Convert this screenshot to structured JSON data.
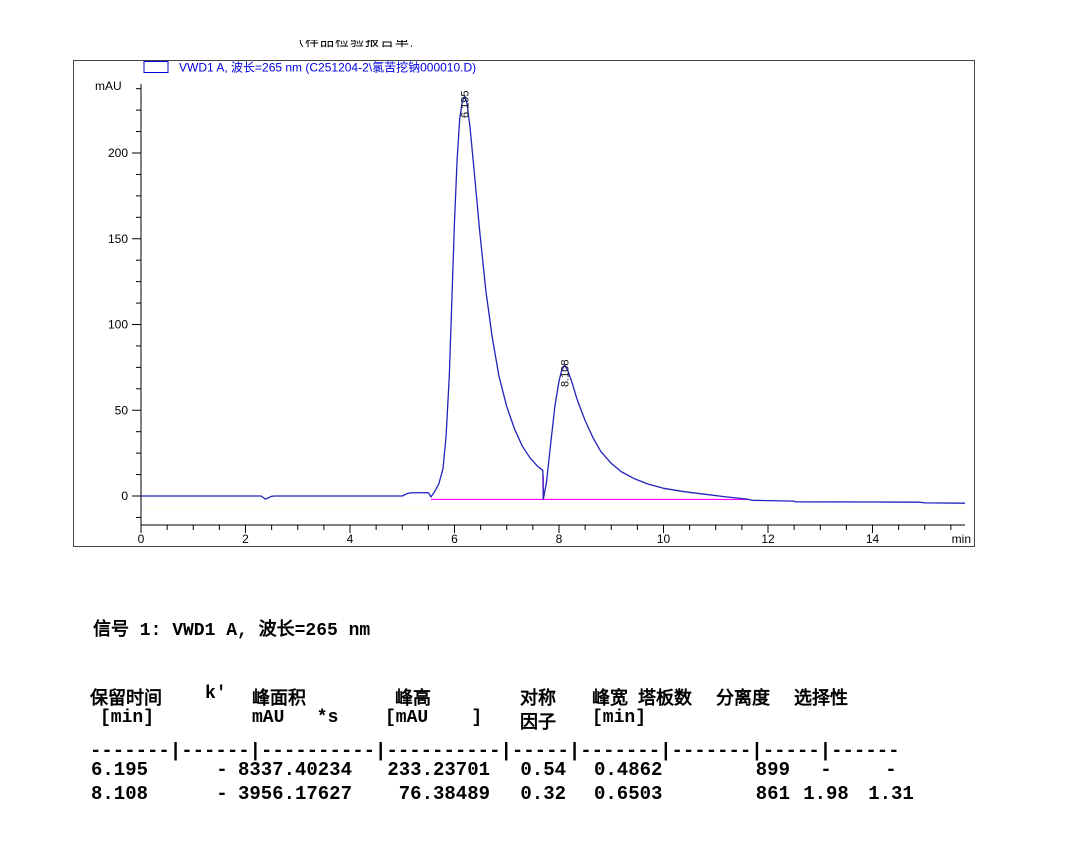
{
  "header": {
    "clipped_title_fragments": "（样品检验报告单）"
  },
  "chart_data": {
    "type": "line",
    "title": "",
    "legend": "VWD1 A, 波长=265 nm (C251204-2\\氯苦挖钠000010.D)",
    "legend_position": "top-left",
    "ylabel": "mAU",
    "xlabel": "min",
    "xlim": [
      0,
      15.8
    ],
    "ylim": [
      -17,
      240
    ],
    "x_major_ticks": [
      0,
      2,
      4,
      6,
      8,
      10,
      12,
      14
    ],
    "x_minor_step": 0.5,
    "y_major_ticks": [
      0,
      50,
      100,
      150,
      200
    ],
    "y_minor_step": 12.5,
    "grid": false,
    "colors": {
      "trace": "#2222bb",
      "baseline": "#ff00ff",
      "legend": "#0000dd",
      "faint_line": "#ffffc8"
    },
    "baseline": {
      "x_start": 5.55,
      "x_end": 11.6,
      "y": -2,
      "valley_tick_x": 7.7
    },
    "peaks": [
      {
        "label": "6.195",
        "time": 6.195,
        "height_mau": 233.23701,
        "area": 8337.40234
      },
      {
        "label": "8.108",
        "time": 8.108,
        "height_mau": 76.38489,
        "area": 3956.17627
      }
    ],
    "trace_points": [
      [
        0,
        0
      ],
      [
        2.3,
        0
      ],
      [
        2.38,
        -1.8
      ],
      [
        2.5,
        -0.2
      ],
      [
        2.55,
        0
      ],
      [
        5.0,
        0
      ],
      [
        5.08,
        1.2
      ],
      [
        5.15,
        1.8
      ],
      [
        5.5,
        2
      ],
      [
        5.55,
        -0.5
      ],
      [
        5.62,
        2.5
      ],
      [
        5.7,
        7
      ],
      [
        5.78,
        16
      ],
      [
        5.84,
        35
      ],
      [
        5.9,
        70
      ],
      [
        5.95,
        115
      ],
      [
        6.0,
        160
      ],
      [
        6.05,
        196
      ],
      [
        6.1,
        220
      ],
      [
        6.15,
        230
      ],
      [
        6.195,
        233.2
      ],
      [
        6.24,
        229
      ],
      [
        6.3,
        214
      ],
      [
        6.38,
        188
      ],
      [
        6.48,
        155
      ],
      [
        6.6,
        120
      ],
      [
        6.72,
        93
      ],
      [
        6.85,
        70
      ],
      [
        7.0,
        52
      ],
      [
        7.15,
        39
      ],
      [
        7.3,
        29
      ],
      [
        7.45,
        22
      ],
      [
        7.6,
        17
      ],
      [
        7.69,
        15
      ],
      [
        7.7,
        -2
      ],
      [
        7.76,
        8
      ],
      [
        7.84,
        30
      ],
      [
        7.92,
        52
      ],
      [
        8.0,
        67
      ],
      [
        8.05,
        73
      ],
      [
        8.108,
        76.4
      ],
      [
        8.17,
        73
      ],
      [
        8.25,
        66
      ],
      [
        8.35,
        56
      ],
      [
        8.5,
        44
      ],
      [
        8.65,
        34
      ],
      [
        8.8,
        26
      ],
      [
        9.0,
        19
      ],
      [
        9.2,
        14
      ],
      [
        9.45,
        10
      ],
      [
        9.7,
        7
      ],
      [
        10.0,
        4.5
      ],
      [
        10.4,
        2.5
      ],
      [
        10.8,
        1
      ],
      [
        11.2,
        -0.5
      ],
      [
        11.6,
        -1.8
      ],
      [
        11.7,
        -2.5
      ],
      [
        12.5,
        -3
      ],
      [
        12.52,
        -3.4
      ],
      [
        14.0,
        -3.5
      ],
      [
        14.9,
        -3.6
      ],
      [
        15.0,
        -4
      ],
      [
        15.77,
        -4.2
      ]
    ]
  },
  "signal_line": "信号 1: VWD1 A, 波长=265 nm",
  "peak_table": {
    "header_row1": [
      "保留时间",
      "k'",
      "峰面积",
      "峰高",
      "对称",
      "峰宽",
      "塔板数",
      "分离度",
      "选择性"
    ],
    "header_row2": [
      "[min]",
      "mAU   *s",
      "[mAU    ]",
      "因子",
      "[min]"
    ],
    "separator": "-------|------|----------|----------|-----|-------|-------|-----|------",
    "rows": [
      [
        "6.195",
        "-",
        "8337.40234",
        "233.23701",
        "0.54",
        "0.4862",
        "899",
        "-",
        "-"
      ],
      [
        "8.108",
        "-",
        "3956.17627",
        "76.38489",
        "0.32",
        "0.6503",
        "861",
        "1.98",
        "1.31"
      ]
    ]
  }
}
